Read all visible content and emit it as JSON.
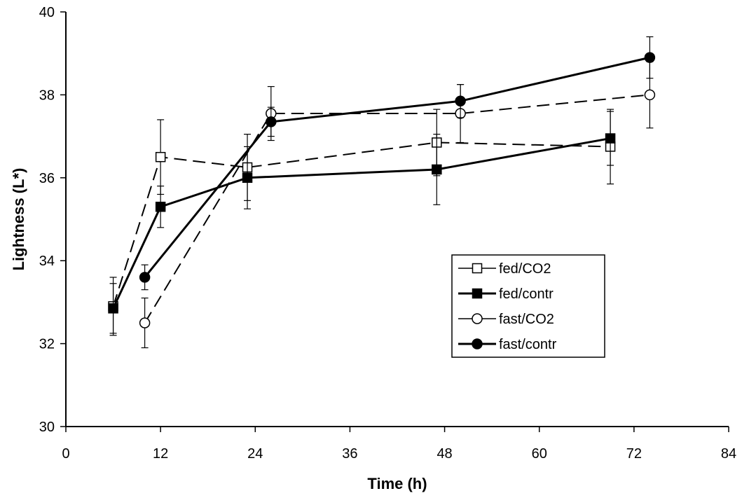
{
  "chart_data": {
    "type": "line",
    "title": "",
    "xlabel": "Time (h)",
    "ylabel": "Lightness (L*)",
    "xlim": [
      0,
      84
    ],
    "ylim": [
      30,
      40
    ],
    "xticks": [
      0,
      12,
      24,
      36,
      48,
      60,
      72,
      84
    ],
    "yticks": [
      30,
      32,
      34,
      36,
      38,
      40
    ],
    "grid": false,
    "legend_position": "right",
    "series": [
      {
        "name": "fed/CO2",
        "marker": "square-open",
        "line": "dashed",
        "color": "#000000",
        "points": [
          {
            "x": 6,
            "y": 32.9,
            "err": 0.7
          },
          {
            "x": 12,
            "y": 36.5,
            "err": 0.9
          },
          {
            "x": 23,
            "y": 36.25,
            "err": 0.8
          },
          {
            "x": 47,
            "y": 36.85,
            "err": 0.8
          },
          {
            "x": 69,
            "y": 36.75,
            "err": 0.9
          }
        ]
      },
      {
        "name": "fed/contr",
        "marker": "square-filled",
        "line": "solid",
        "color": "#000000",
        "points": [
          {
            "x": 6,
            "y": 32.85,
            "err": 0.6
          },
          {
            "x": 12,
            "y": 35.3,
            "err": 0.5
          },
          {
            "x": 23,
            "y": 36.0,
            "err": 0.75
          },
          {
            "x": 47,
            "y": 36.2,
            "err": 0.85
          },
          {
            "x": 69,
            "y": 36.95,
            "err": 0.65
          }
        ]
      },
      {
        "name": "fast/CO2",
        "marker": "circle-open",
        "line": "dashed",
        "color": "#000000",
        "points": [
          {
            "x": 10,
            "y": 32.5,
            "err": 0.6
          },
          {
            "x": 26,
            "y": 37.55,
            "err": 0.65
          },
          {
            "x": 50,
            "y": 37.55,
            "err": 0.7
          },
          {
            "x": 74,
            "y": 38.0,
            "err": 0.8
          }
        ]
      },
      {
        "name": "fast/contr",
        "marker": "circle-filled",
        "line": "solid",
        "color": "#000000",
        "points": [
          {
            "x": 10,
            "y": 33.6,
            "err": 0.3
          },
          {
            "x": 26,
            "y": 37.35,
            "err": 0.35
          },
          {
            "x": 50,
            "y": 37.85,
            "err": 0.4
          },
          {
            "x": 74,
            "y": 38.9,
            "err": 0.5
          }
        ]
      }
    ]
  }
}
